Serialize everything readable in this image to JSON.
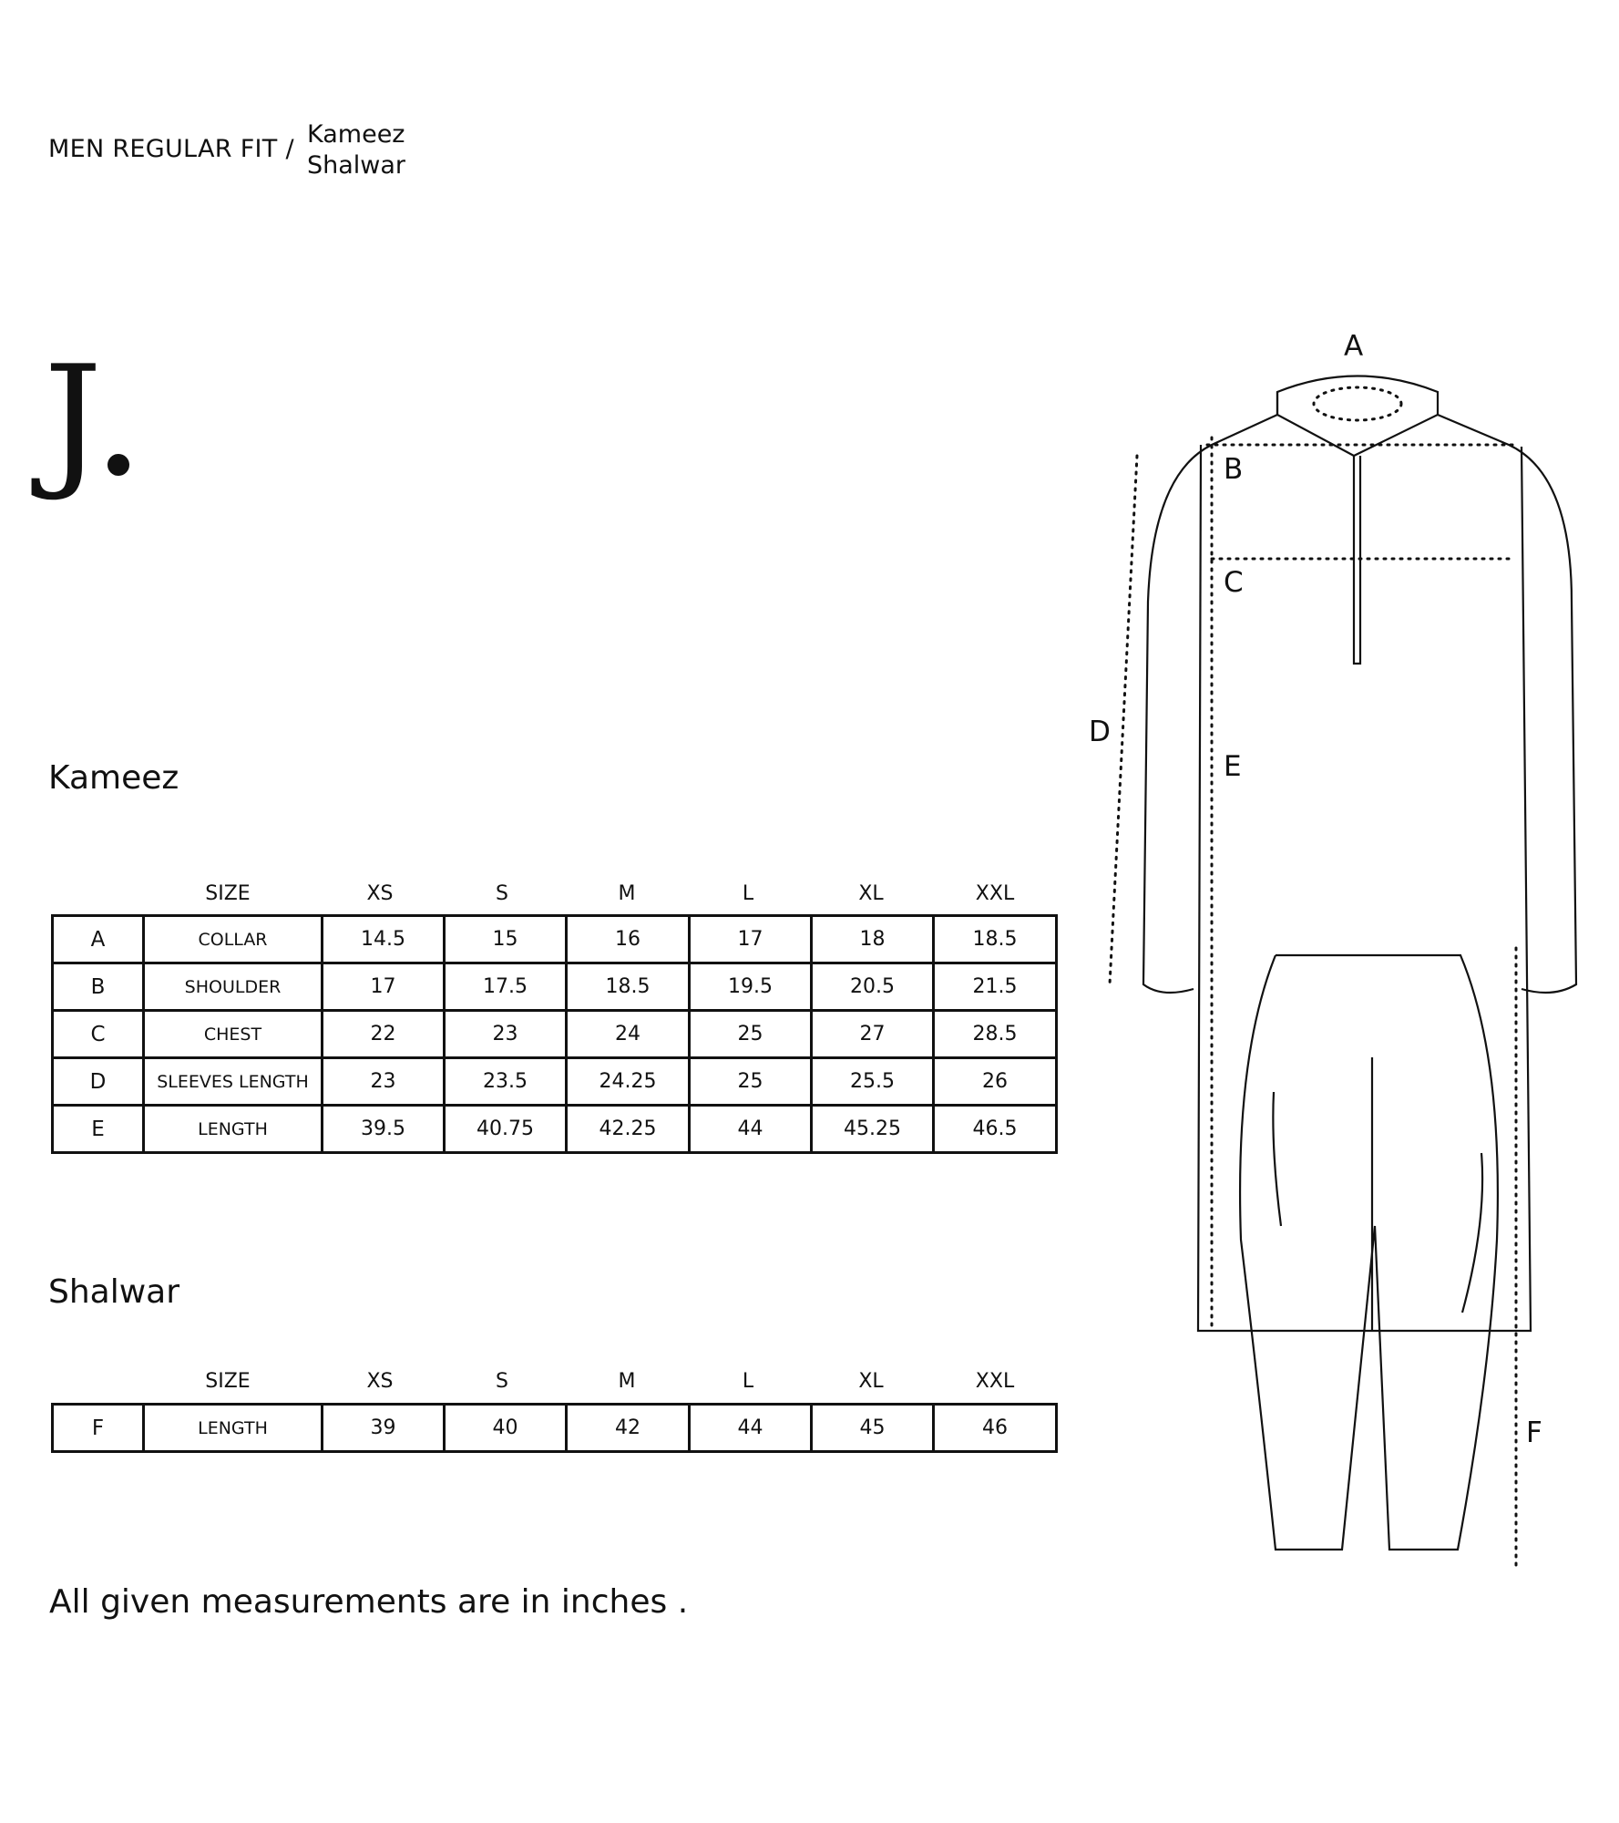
{
  "header": {
    "title": "MEN REGULAR FIT /",
    "sub_line1": "Kameez",
    "sub_line2": "Shalwar"
  },
  "brand": {
    "logo_letter": "J"
  },
  "kameez": {
    "title": "Kameez",
    "size_header": "SIZE",
    "sizes": [
      "XS",
      "S",
      "M",
      "L",
      "XL",
      "XXL"
    ],
    "rows": [
      {
        "code": "A",
        "label": "COLLAR",
        "values": [
          "14.5",
          "15",
          "16",
          "17",
          "18",
          "18.5"
        ]
      },
      {
        "code": "B",
        "label": "SHOULDER",
        "values": [
          "17",
          "17.5",
          "18.5",
          "19.5",
          "20.5",
          "21.5"
        ]
      },
      {
        "code": "C",
        "label": "CHEST",
        "values": [
          "22",
          "23",
          "24",
          "25",
          "27",
          "28.5"
        ]
      },
      {
        "code": "D",
        "label": "SLEEVES LENGTH",
        "values": [
          "23",
          "23.5",
          "24.25",
          "25",
          "25.5",
          "26"
        ]
      },
      {
        "code": "E",
        "label": "LENGTH",
        "values": [
          "39.5",
          "40.75",
          "42.25",
          "44",
          "45.25",
          "46.5"
        ]
      }
    ]
  },
  "shalwar": {
    "title": "Shalwar",
    "size_header": "SIZE",
    "sizes": [
      "XS",
      "S",
      "M",
      "L",
      "XL",
      "XXL"
    ],
    "rows": [
      {
        "code": "F",
        "label": "LENGTH",
        "values": [
          "39",
          "40",
          "42",
          "44",
          "45",
          "46"
        ]
      }
    ]
  },
  "footnote": "All given measurements are in inches .",
  "diagram": {
    "letters": {
      "a": "A",
      "b": "B",
      "c": "C",
      "d": "D",
      "e": "E",
      "f": "F"
    }
  }
}
